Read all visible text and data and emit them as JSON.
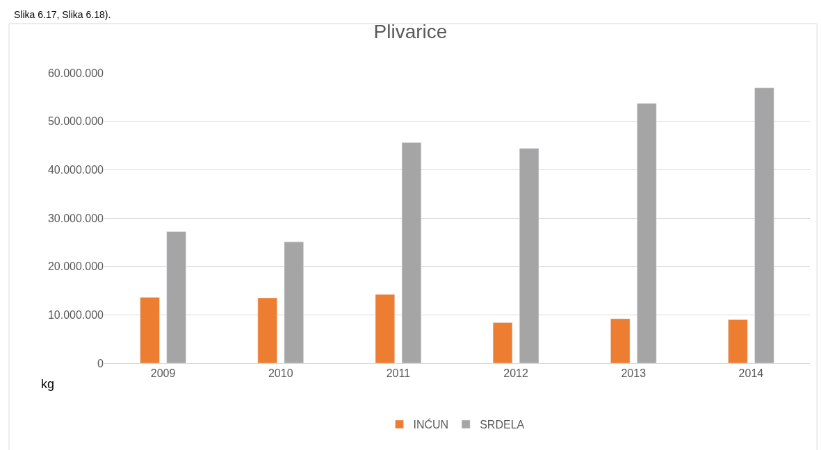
{
  "chart_data": {
    "type": "bar",
    "title": "Plivarice",
    "ylabel": "kg",
    "annotations": [
      "Slika 6.17, Slika 6.18)."
    ],
    "categories": [
      "2009",
      "2010",
      "2011",
      "2012",
      "2013",
      "2014"
    ],
    "series": [
      {
        "name": "INĆUN",
        "color": "#ed7d31",
        "values": [
          13600000,
          13500000,
          14200000,
          8400000,
          9200000,
          9000000
        ]
      },
      {
        "name": "SRDELA",
        "color": "#a5a5a5",
        "values": [
          27200000,
          25100000,
          45600000,
          44400000,
          53700000,
          56900000
        ]
      }
    ],
    "ylim": [
      0,
      60000000
    ],
    "yticks": [
      {
        "value": 0,
        "label": "0"
      },
      {
        "value": 10000000,
        "label": "10.000.000"
      },
      {
        "value": 20000000,
        "label": "20.000.000"
      },
      {
        "value": 30000000,
        "label": "30.000.000"
      },
      {
        "value": 40000000,
        "label": "40.000.000"
      },
      {
        "value": 50000000,
        "label": "50.000.000"
      },
      {
        "value": 60000000,
        "label": "60.000.000"
      }
    ],
    "grid": "y",
    "legend": "bottom"
  }
}
